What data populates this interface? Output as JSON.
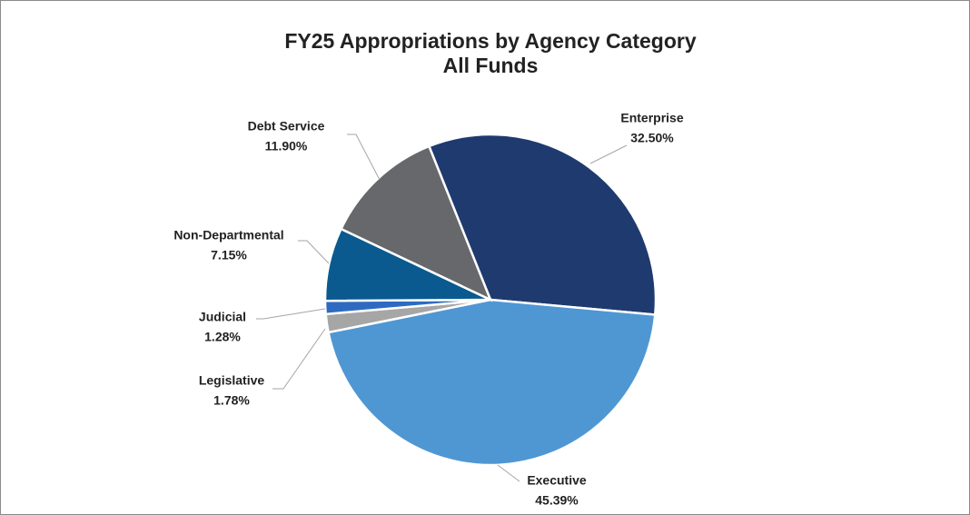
{
  "chart_data": {
    "type": "pie",
    "title": "FY25 Appropriations by Agency Category",
    "subtitle": "All Funds",
    "categories": [
      "Enterprise",
      "Executive",
      "Legislative",
      "Judicial",
      "Non-Departmental",
      "Debt Service"
    ],
    "values": [
      32.5,
      45.39,
      1.78,
      1.28,
      7.15,
      11.9
    ],
    "value_labels": [
      "32.50%",
      "45.39%",
      "1.78%",
      "1.28%",
      "7.15%",
      "11.90%"
    ],
    "colors": [
      "#1f3a6e",
      "#4f97d3",
      "#a6a6a6",
      "#2e6bc0",
      "#0a5a8f",
      "#67686b"
    ]
  }
}
